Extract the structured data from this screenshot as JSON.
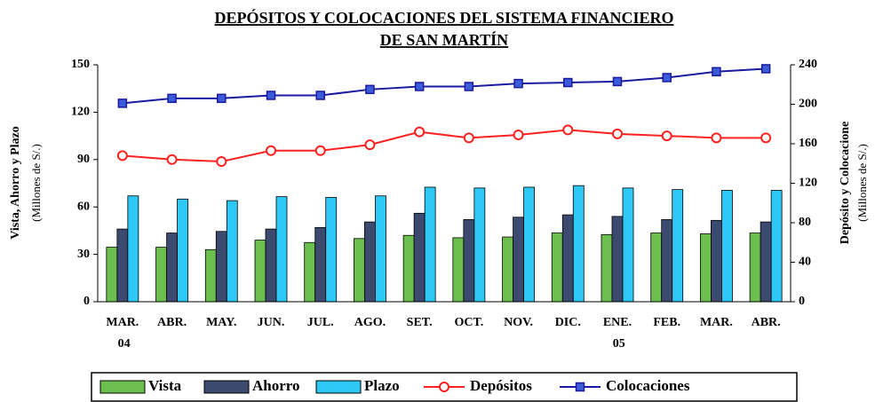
{
  "chart_data": {
    "type": "bar-line",
    "title": [
      "DEPÓSITOS Y COLOCACIONES DEL SISTEMA FINANCIERO",
      "DE SAN MARTÍN"
    ],
    "y_label": "Vista, Ahorro y Plazo",
    "y_sublabel": "(Millones de S/.)",
    "y2_label": "Depósito y Colocacione",
    "y2_sublabel": "(Millones de S/.)",
    "categories": [
      "MAR. 04",
      "ABR.",
      "MAY.",
      "JUN.",
      "JUL.",
      "AGO.",
      "SET.",
      "OCT.",
      "NOV.",
      "DIC.",
      "ENE. 05",
      "FEB.",
      "MAR.",
      "ABR."
    ],
    "ylim": [
      0,
      150
    ],
    "yticks": [
      0,
      30,
      60,
      90,
      120,
      150
    ],
    "y2lim": [
      0,
      240
    ],
    "y2ticks": [
      0,
      40,
      80,
      120,
      160,
      200,
      240
    ],
    "series": [
      {
        "name": "Vista",
        "type": "bar",
        "color": "#6cbf4f",
        "values": [
          34.5,
          34.5,
          33,
          39,
          37.5,
          40,
          42,
          40.5,
          41,
          43.5,
          42.5,
          43.5,
          43,
          43.5
        ]
      },
      {
        "name": "Ahorro",
        "type": "bar",
        "color": "#3b4a6e",
        "values": [
          46,
          43.5,
          44.5,
          46,
          47,
          50.5,
          56,
          52,
          53.5,
          55,
          54,
          52,
          51.5,
          50.5
        ]
      },
      {
        "name": "Plazo",
        "type": "bar",
        "color": "#2ec8f5",
        "values": [
          67,
          65,
          64,
          66.5,
          66,
          67,
          72.5,
          72,
          72.5,
          73.5,
          72,
          71,
          70.5,
          70.5
        ]
      },
      {
        "name": "Depósitos",
        "type": "line",
        "axis": "y2",
        "color": "#ff2020",
        "values": [
          148,
          144,
          142,
          153,
          153,
          159,
          172,
          166,
          169,
          174,
          170,
          168,
          166,
          166
        ]
      },
      {
        "name": "Colocaciones",
        "type": "line",
        "axis": "y2",
        "color": "#1a1aa0",
        "values": [
          201,
          206,
          206,
          209,
          209,
          215,
          218,
          218,
          221,
          222,
          223,
          227,
          233,
          236
        ]
      }
    ]
  }
}
